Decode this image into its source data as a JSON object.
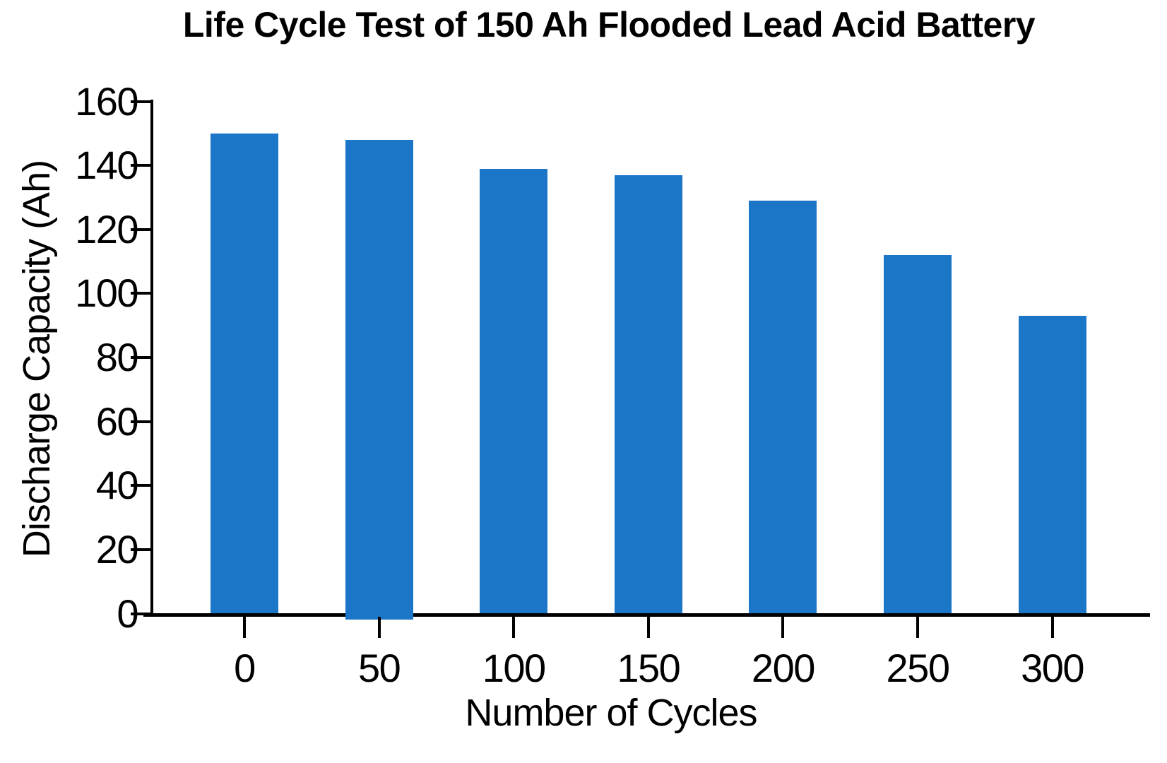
{
  "figure": {
    "background": "#ffffff",
    "text_color": "#000000"
  },
  "chart_data": {
    "type": "bar",
    "title": "Life Cycle Test of 150 Ah Flooded Lead Acid Battery",
    "xlabel": "Number of Cycles",
    "ylabel": "Discharge Capacity (Ah)",
    "categories": [
      "0",
      "50",
      "100",
      "150",
      "200",
      "250",
      "300"
    ],
    "series": [
      {
        "name": "Discharge Capacity (Ah)",
        "values": [
          150,
          148,
          139,
          137,
          129,
          112,
          93
        ]
      }
    ],
    "ylim": [
      0,
      160
    ],
    "ytick_step": 20,
    "yticks": [
      0,
      20,
      40,
      60,
      80,
      100,
      120,
      140,
      160
    ],
    "bar_color": "#1C76C8",
    "axis_color": "#000000",
    "grid": false,
    "legend_position": "none",
    "artifacts": {
      "bar_overshoots_baseline_category": "50"
    }
  }
}
